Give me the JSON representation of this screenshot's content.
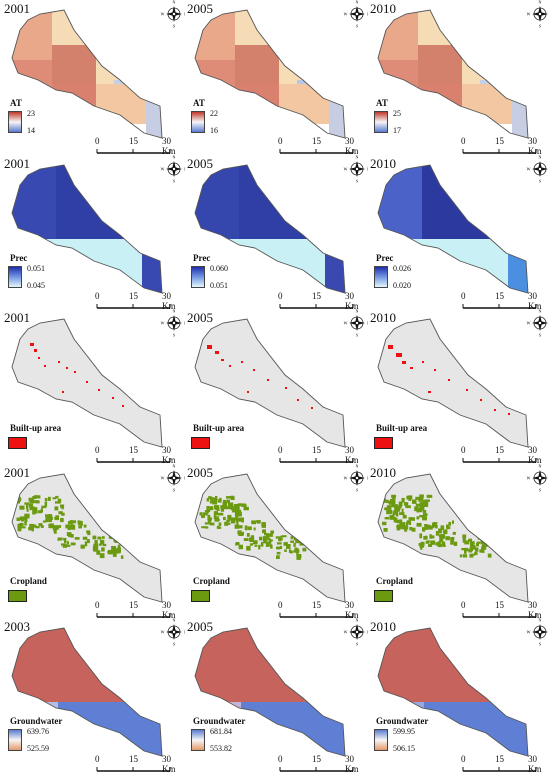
{
  "scale_labels": [
    "0",
    "15",
    "30 Km"
  ],
  "compass": {
    "n": "N",
    "e": "E",
    "s": "S",
    "w": "W"
  },
  "rows": [
    {
      "variable": "AT",
      "legend_type": "gradient",
      "colors": {
        "high": "#c0392b",
        "low": "#5a7bd0"
      },
      "panels": [
        {
          "year": "2001",
          "high": "23",
          "low": "14"
        },
        {
          "year": "2005",
          "high": "22",
          "low": "16"
        },
        {
          "year": "2010",
          "high": "25",
          "low": "17"
        }
      ]
    },
    {
      "variable": "Prec",
      "legend_type": "gradient",
      "colors": {
        "high": "#1f2ea8",
        "low": "#e3f7fb"
      },
      "panels": [
        {
          "year": "2001",
          "high": "0.051",
          "low": "0.045"
        },
        {
          "year": "2005",
          "high": "0.060",
          "low": "0.051"
        },
        {
          "year": "2010",
          "high": "0.026",
          "low": "0.020"
        }
      ]
    },
    {
      "variable": "Built-up area",
      "legend_type": "solid",
      "colors": {
        "fill": "#ee1111"
      },
      "panels": [
        {
          "year": "2001"
        },
        {
          "year": "2005"
        },
        {
          "year": "2010"
        }
      ]
    },
    {
      "variable": "Cropland",
      "legend_type": "solid",
      "colors": {
        "fill": "#6b9a10"
      },
      "panels": [
        {
          "year": "2001"
        },
        {
          "year": "2005"
        },
        {
          "year": "2010"
        }
      ]
    },
    {
      "variable": "Groundwater",
      "legend_type": "gradient",
      "colors": {
        "high": "#5a7bd0",
        "low": "#e39a6a"
      },
      "panels": [
        {
          "year": "2003",
          "high": "639.76",
          "low": "525.59"
        },
        {
          "year": "2005",
          "high": "681.84",
          "low": "553.82"
        },
        {
          "year": "2010",
          "high": "599.95",
          "low": "506.15"
        }
      ]
    }
  ]
}
